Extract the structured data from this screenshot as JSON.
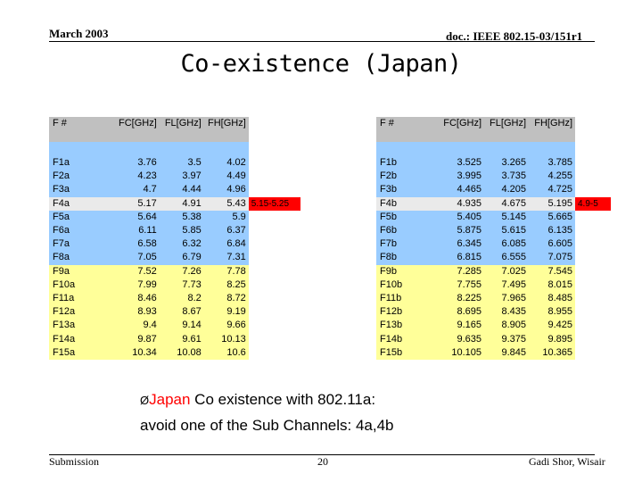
{
  "header": {
    "date": "March 2003",
    "doc": "doc.: IEEE 802.15-03/151r1"
  },
  "title": "Co-existence (Japan)",
  "table_a": {
    "headers": [
      "F #",
      "FC[GHz]",
      "FL[GHz]",
      "FH[GHz]"
    ],
    "rows": [
      [
        "F1a",
        "3.76",
        "3.5",
        "4.02"
      ],
      [
        "F2a",
        "4.23",
        "3.97",
        "4.49"
      ],
      [
        "F3a",
        "4.7",
        "4.44",
        "4.96"
      ],
      [
        "F4a",
        "5.17",
        "4.91",
        "5.43"
      ],
      [
        "F5a",
        "5.64",
        "5.38",
        "5.9"
      ],
      [
        "F6a",
        "6.11",
        "5.85",
        "6.37"
      ],
      [
        "F7a",
        "6.58",
        "6.32",
        "6.84"
      ],
      [
        "F8a",
        "7.05",
        "6.79",
        "7.31"
      ],
      [
        "F9a",
        "7.52",
        "7.26",
        "7.78"
      ],
      [
        "F10a",
        "7.99",
        "7.73",
        "8.25"
      ],
      [
        "F11a",
        "8.46",
        "8.2",
        "8.72"
      ],
      [
        "F12a",
        "8.93",
        "8.67",
        "9.19"
      ],
      [
        "F13a",
        "9.4",
        "9.14",
        "9.66"
      ],
      [
        "F14a",
        "9.87",
        "9.61",
        "10.13"
      ],
      [
        "F15a",
        "10.34",
        "10.08",
        "10.6"
      ]
    ],
    "conflict_band": "5.15-5.25"
  },
  "table_b": {
    "headers": [
      "F #",
      "FC[GHz]",
      "FL[GHz]",
      "FH[GHz]"
    ],
    "rows": [
      [
        "F1b",
        "3.525",
        "3.265",
        "3.785"
      ],
      [
        "F2b",
        "3.995",
        "3.735",
        "4.255"
      ],
      [
        "F3b",
        "4.465",
        "4.205",
        "4.725"
      ],
      [
        "F4b",
        "4.935",
        "4.675",
        "5.195"
      ],
      [
        "F5b",
        "5.405",
        "5.145",
        "5.665"
      ],
      [
        "F6b",
        "5.875",
        "5.615",
        "6.135"
      ],
      [
        "F7b",
        "6.345",
        "6.085",
        "6.605"
      ],
      [
        "F8b",
        "6.815",
        "6.555",
        "7.075"
      ],
      [
        "F9b",
        "7.285",
        "7.025",
        "7.545"
      ],
      [
        "F10b",
        "7.755",
        "7.495",
        "8.015"
      ],
      [
        "F11b",
        "8.225",
        "7.965",
        "8.485"
      ],
      [
        "F12b",
        "8.695",
        "8.435",
        "8.955"
      ],
      [
        "F13b",
        "9.165",
        "8.905",
        "9.425"
      ],
      [
        "F14b",
        "9.635",
        "9.375",
        "9.895"
      ],
      [
        "F15b",
        "10.105",
        "9.845",
        "10.365"
      ]
    ],
    "conflict_band": "4.9-5"
  },
  "bullet": {
    "marker": "Ø",
    "highlight": "Japan",
    "line1_rest": " Co existence with 802.11a:",
    "line2": "avoid one of the Sub Channels: 4a,4b"
  },
  "footer": {
    "left": "Submission",
    "page": "20",
    "author": "Gadi Shor, Wisair"
  },
  "colors": {
    "blue_rows": "#99ccff",
    "yellow_rows": "#ffff99",
    "header": "#c0c0c0",
    "conflict": "#ff0000",
    "selected_row": "#eaeaea"
  }
}
